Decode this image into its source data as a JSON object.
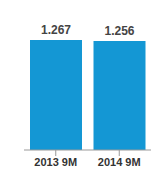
{
  "chart_data": {
    "type": "bar",
    "categories": [
      "2013 9M",
      "2014 9M"
    ],
    "values": [
      1.267,
      1.256
    ],
    "color": "#1497d4",
    "data_labels": true,
    "tick_labels": "x",
    "grid": false
  }
}
